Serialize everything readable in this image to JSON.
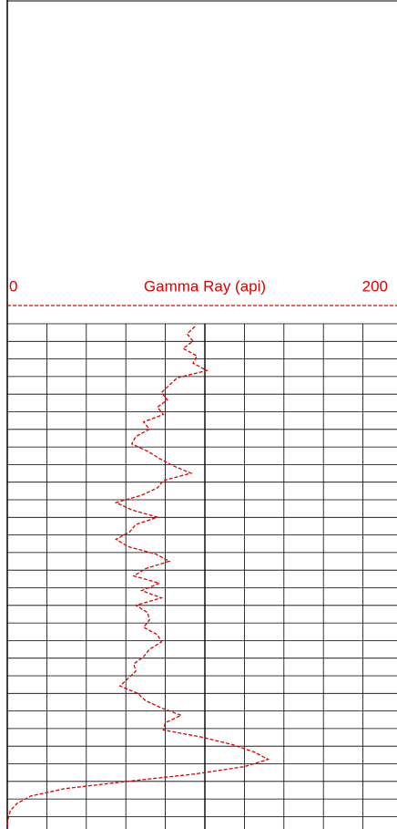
{
  "chart_data": {
    "type": "line",
    "title": "Gamma Ray (api)",
    "xlim": [
      0,
      200
    ],
    "xticks": [
      0,
      200
    ],
    "grid": true,
    "color": "#e00000",
    "line_style": "dashed",
    "series": [
      {
        "name": "Gamma Ray (api)",
        "color": "#e00000",
        "values": [
          95,
          91,
          94,
          89,
          96,
          94,
          101,
          86,
          82,
          78,
          81,
          76,
          79,
          69,
          72,
          65,
          63,
          71,
          77,
          84,
          93,
          79,
          76,
          68,
          55,
          63,
          76,
          65,
          62,
          55,
          61,
          75,
          82,
          70,
          64,
          77,
          68,
          78,
          65,
          71,
          72,
          69,
          76,
          78,
          72,
          69,
          64,
          65,
          61,
          57,
          66,
          70,
          78,
          88,
          80,
          79,
          99,
          114,
          125,
          132,
          120,
          95,
          61,
          29,
          12,
          5,
          1.5,
          0.5,
          0
        ]
      }
    ]
  }
}
